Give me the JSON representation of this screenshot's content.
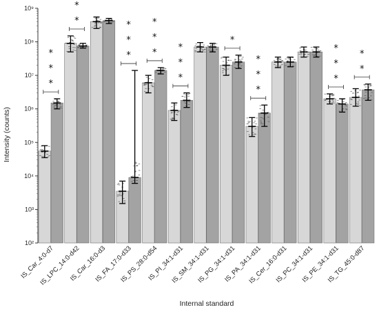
{
  "chart_data": {
    "type": "bar",
    "ylabel": "Intensity (counts)",
    "xlabel": "Internal standard",
    "yscale": "log",
    "ylim": [
      100,
      1000000000
    ],
    "ytick_labels": [
      "10²",
      "10³",
      "10⁴",
      "10⁵",
      "10⁶",
      "10⁷",
      "10⁸",
      "10⁹"
    ],
    "categories": [
      "IS_Car_4:0-d7",
      "IS_LPC_14:0-d42",
      "IS_Car_16:0-d3",
      "IS_FA_17:0-d33",
      "IS_PS_28:0-d54",
      "IS_PI_34:1-d31",
      "IS_SM_34:1-d31",
      "IS_PG_34:1-d31",
      "IS_PA_34:1-d31",
      "IS_Cer_16:0-d31",
      "IS_PC_34:1-d31",
      "IS_PE_34:1-d31",
      "IS_TG_45:0-d87"
    ],
    "series": [
      {
        "values": [
          55000,
          90000000,
          400000000,
          3500,
          6000000,
          900000,
          70000000,
          20000000,
          300000,
          25000000,
          50000000,
          2000000,
          2200000
        ],
        "err_low": [
          35000,
          50000000,
          250000000,
          1500,
          3000000,
          450000,
          50000000,
          10000000,
          150000,
          17000000,
          35000000,
          1400000,
          1200000
        ],
        "err_high": [
          80000,
          150000000,
          550000000,
          7000,
          10000000,
          1500000,
          95000000,
          35000000,
          550000,
          35000000,
          70000000,
          2800000,
          4000000
        ]
      },
      {
        "values": [
          1500000,
          75000000,
          430000000,
          9000,
          14000000,
          1800000,
          70000000,
          25000000,
          750000,
          25000000,
          50000000,
          1400000,
          3700000
        ],
        "err_low": [
          1000000,
          65000000,
          350000000,
          6000,
          11000000,
          1100000,
          50000000,
          16000000,
          300000,
          18000000,
          35000000,
          800000,
          1800000
        ],
        "err_high": [
          2000000,
          90000000,
          500000000,
          14000000,
          17000000,
          3000000,
          90000000,
          40000000,
          1300000,
          35000000,
          70000000,
          2000000,
          5500000
        ]
      }
    ],
    "significance": [
      "***",
      "**",
      "",
      "***",
      "***",
      "***",
      "",
      "*",
      "***",
      "",
      "",
      "***",
      "**"
    ],
    "colors": {
      "series_1": "#d7d7d7",
      "series_2": "#a3a3a3",
      "edge": "#6e6e6e",
      "error": "#000000",
      "dots": "#5a5a5a"
    }
  }
}
